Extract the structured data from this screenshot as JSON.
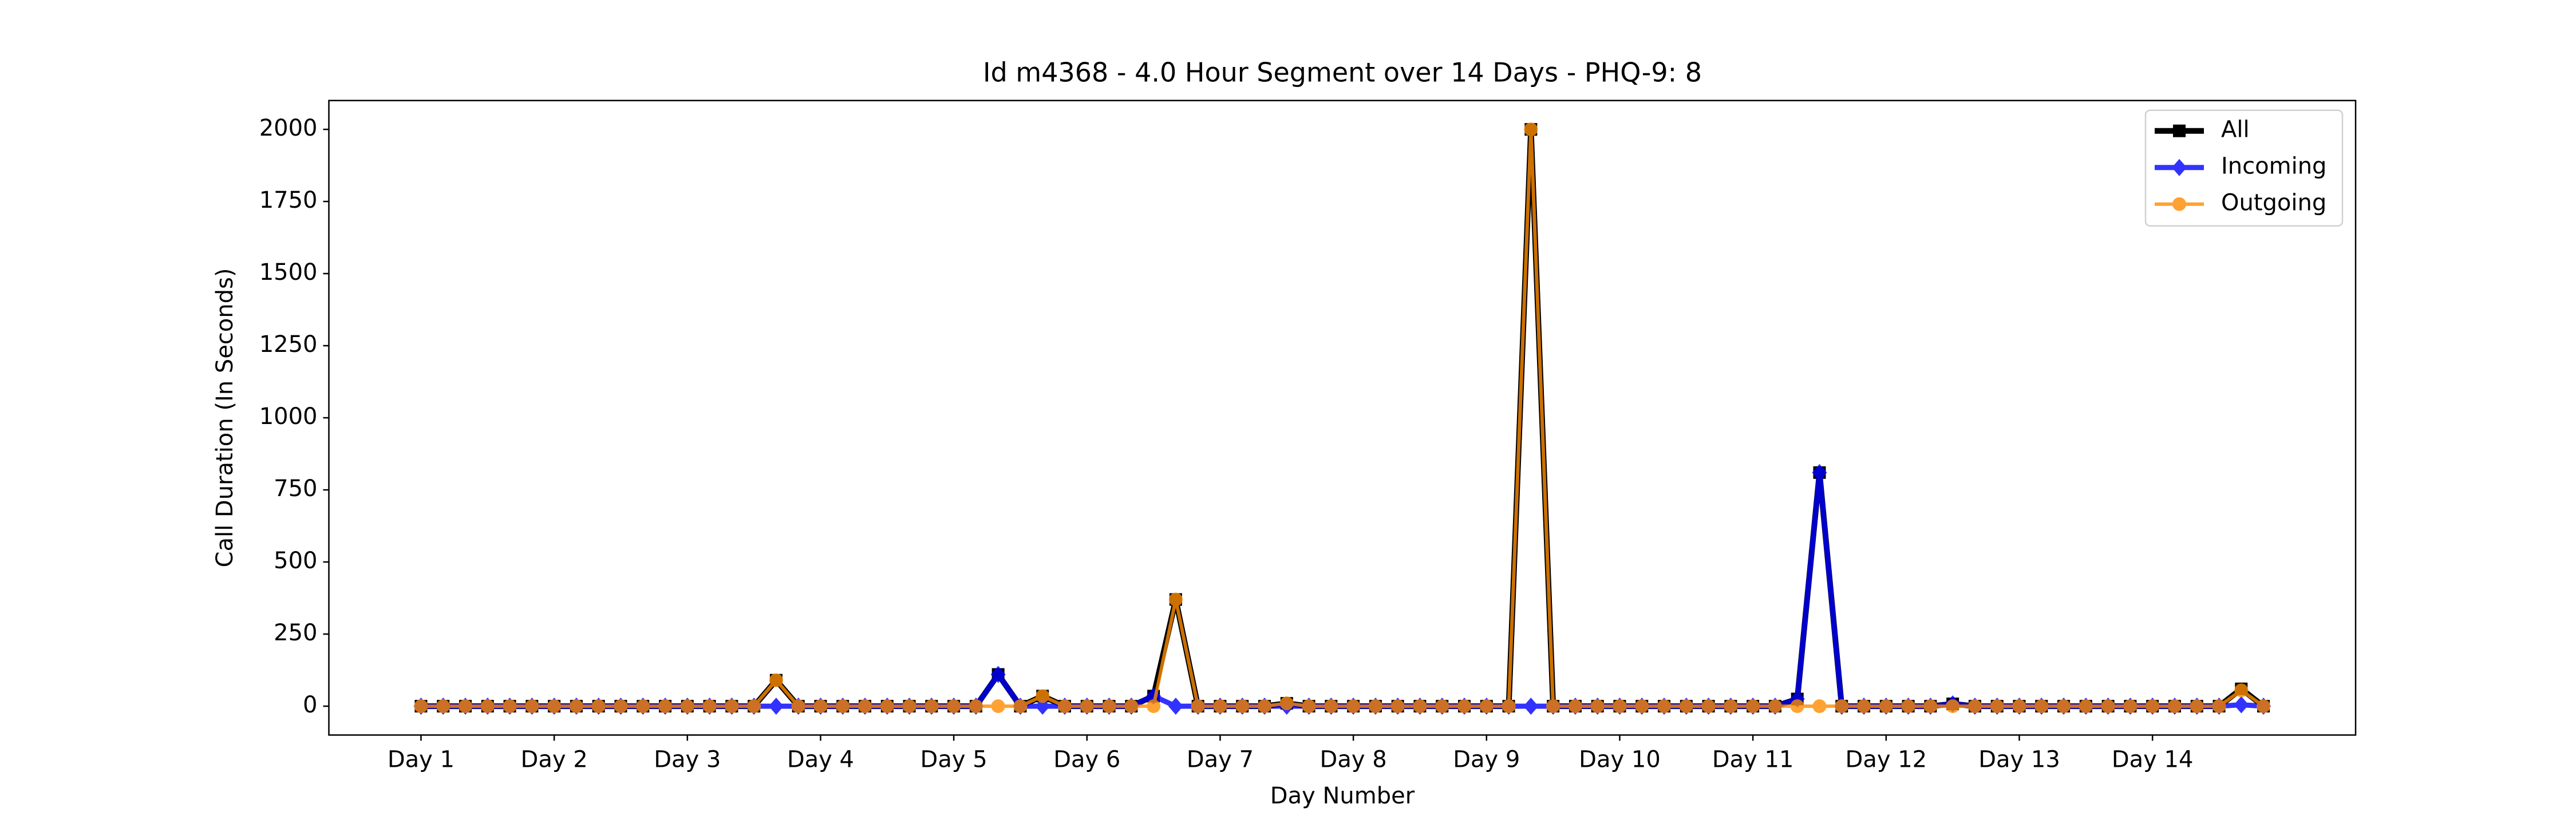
{
  "chart_data": {
    "type": "line",
    "title": "Id m4368 - 4.0 Hour Segment over 14 Days - PHQ-9: 8",
    "xlabel": "Day Number",
    "ylabel": "Call Duration (In Seconds)",
    "x": [
      0,
      1,
      2,
      3,
      4,
      5,
      6,
      7,
      8,
      9,
      10,
      11,
      12,
      13,
      14,
      15,
      16,
      17,
      18,
      19,
      20,
      21,
      22,
      23,
      24,
      25,
      26,
      27,
      28,
      29,
      30,
      31,
      32,
      33,
      34,
      35,
      36,
      37,
      38,
      39,
      40,
      41,
      42,
      43,
      44,
      45,
      46,
      47,
      48,
      49,
      50,
      51,
      52,
      53,
      54,
      55,
      56,
      57,
      58,
      59,
      60,
      61,
      62,
      63,
      64,
      65,
      66,
      67,
      68,
      69,
      70,
      71,
      72,
      73,
      74,
      75,
      76,
      77,
      78,
      79,
      80,
      81,
      82,
      83
    ],
    "series": [
      {
        "name": "All",
        "color": "#000000",
        "marker": "square",
        "values": [
          0,
          0,
          0,
          0,
          0,
          0,
          0,
          0,
          0,
          0,
          0,
          0,
          0,
          0,
          0,
          0,
          90,
          0,
          0,
          0,
          0,
          0,
          0,
          0,
          0,
          0,
          110,
          0,
          35,
          0,
          0,
          0,
          0,
          35,
          370,
          0,
          0,
          0,
          0,
          10,
          0,
          0,
          0,
          0,
          0,
          0,
          0,
          0,
          0,
          0,
          2000,
          0,
          0,
          0,
          0,
          0,
          0,
          0,
          0,
          0,
          0,
          0,
          25,
          810,
          0,
          0,
          0,
          0,
          0,
          8,
          0,
          0,
          0,
          0,
          0,
          0,
          0,
          0,
          0,
          0,
          0,
          0,
          60,
          0
        ]
      },
      {
        "name": "Incoming",
        "color": "#0000ff",
        "marker": "diamond",
        "values": [
          0,
          0,
          0,
          0,
          0,
          0,
          0,
          0,
          0,
          0,
          0,
          0,
          0,
          0,
          0,
          0,
          0,
          0,
          0,
          0,
          0,
          0,
          0,
          0,
          0,
          0,
          110,
          0,
          0,
          0,
          0,
          0,
          0,
          35,
          0,
          0,
          0,
          0,
          0,
          0,
          0,
          0,
          0,
          0,
          0,
          0,
          0,
          0,
          0,
          0,
          0,
          0,
          0,
          0,
          0,
          0,
          0,
          0,
          0,
          0,
          0,
          0,
          25,
          810,
          0,
          0,
          0,
          0,
          0,
          8,
          0,
          0,
          0,
          0,
          0,
          0,
          0,
          0,
          0,
          0,
          0,
          0,
          5,
          0
        ]
      },
      {
        "name": "Outgoing",
        "color": "#ff8c00",
        "marker": "circle",
        "values": [
          0,
          0,
          0,
          0,
          0,
          0,
          0,
          0,
          0,
          0,
          0,
          0,
          0,
          0,
          0,
          0,
          90,
          0,
          0,
          0,
          0,
          0,
          0,
          0,
          0,
          0,
          0,
          0,
          35,
          0,
          0,
          0,
          0,
          0,
          370,
          0,
          0,
          0,
          0,
          10,
          0,
          0,
          0,
          0,
          0,
          0,
          0,
          0,
          0,
          0,
          2000,
          0,
          0,
          0,
          0,
          0,
          0,
          0,
          0,
          0,
          0,
          0,
          0,
          0,
          0,
          0,
          0,
          0,
          0,
          0,
          0,
          0,
          0,
          0,
          0,
          0,
          0,
          0,
          0,
          0,
          0,
          0,
          55,
          0
        ]
      }
    ],
    "xlim": [
      -4.15,
      87.15
    ],
    "xticks": [
      {
        "value": 0,
        "label": "Day 1"
      },
      {
        "value": 6,
        "label": "Day 2"
      },
      {
        "value": 12,
        "label": "Day 3"
      },
      {
        "value": 18,
        "label": "Day 4"
      },
      {
        "value": 24,
        "label": "Day 5"
      },
      {
        "value": 30,
        "label": "Day 6"
      },
      {
        "value": 36,
        "label": "Day 7"
      },
      {
        "value": 42,
        "label": "Day 8"
      },
      {
        "value": 48,
        "label": "Day 9"
      },
      {
        "value": 54,
        "label": "Day 10"
      },
      {
        "value": 60,
        "label": "Day 11"
      },
      {
        "value": 66,
        "label": "Day 12"
      },
      {
        "value": 72,
        "label": "Day 13"
      },
      {
        "value": 78,
        "label": "Day 14"
      }
    ],
    "ylim": [
      -100,
      2100
    ],
    "yticks": [
      0,
      250,
      500,
      750,
      1000,
      1250,
      1500,
      1750,
      2000
    ],
    "grid": false,
    "legend": "upper right"
  }
}
